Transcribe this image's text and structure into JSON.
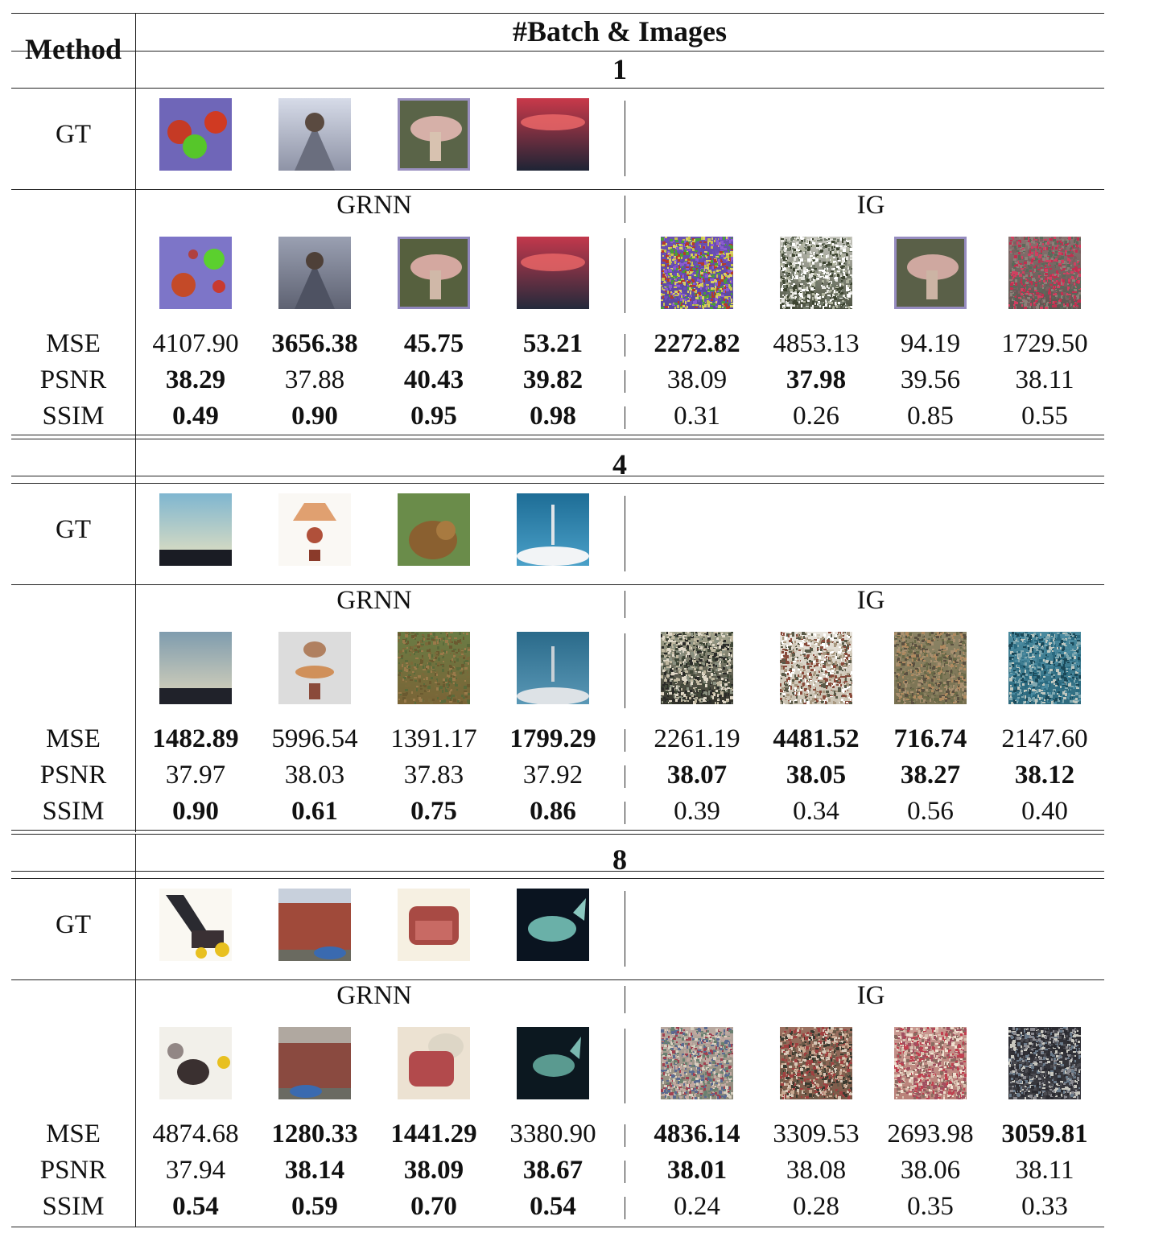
{
  "header": {
    "method_label": "Method",
    "group_label": "#Batch & Images"
  },
  "blocks": [
    {
      "batch": "1",
      "gt_label": "GT",
      "left_method": "GRNN",
      "right_method": "IG",
      "gt_images": [
        "apples",
        "road-tree",
        "mushroom",
        "sunset"
      ],
      "grnn_images": [
        "apples-recon",
        "road-tree-recon",
        "mushroom-recon",
        "sunset-recon"
      ],
      "ig_images": [
        "noise-colorful",
        "noise-grey",
        "mushroom-recon-ig",
        "noise-red"
      ],
      "metrics": [
        {
          "name": "MSE",
          "values": [
            "4107.90",
            "3656.38",
            "45.75",
            "53.21",
            "2272.82",
            "4853.13",
            "94.19",
            "1729.50"
          ],
          "bold": [
            false,
            true,
            true,
            true,
            true,
            false,
            false,
            false
          ]
        },
        {
          "name": "PSNR",
          "values": [
            "38.29",
            "37.88",
            "40.43",
            "39.82",
            "38.09",
            "37.98",
            "39.56",
            "38.11"
          ],
          "bold": [
            true,
            false,
            true,
            true,
            false,
            true,
            false,
            false
          ]
        },
        {
          "name": "SSIM",
          "values": [
            "0.49",
            "0.90",
            "0.95",
            "0.98",
            "0.31",
            "0.26",
            "0.85",
            "0.55"
          ],
          "bold": [
            true,
            true,
            true,
            true,
            false,
            false,
            false,
            false
          ]
        }
      ]
    },
    {
      "batch": "4",
      "gt_label": "GT",
      "left_method": "GRNN",
      "right_method": "IG",
      "gt_images": [
        "sky-horizon",
        "lamp",
        "lion",
        "rocket"
      ],
      "grnn_images": [
        "sky-horizon-recon",
        "lamp-recon",
        "lion-recon",
        "rocket-recon"
      ],
      "ig_images": [
        "noise-dark",
        "noise-light",
        "noise-olive",
        "noise-teal"
      ],
      "metrics": [
        {
          "name": "MSE",
          "values": [
            "1482.89",
            "5996.54",
            "1391.17",
            "1799.29",
            "2261.19",
            "4481.52",
            "716.74",
            "2147.60"
          ],
          "bold": [
            true,
            false,
            false,
            true,
            false,
            true,
            true,
            false
          ]
        },
        {
          "name": "PSNR",
          "values": [
            "37.97",
            "38.03",
            "37.83",
            "37.92",
            "38.07",
            "38.05",
            "38.27",
            "38.12"
          ],
          "bold": [
            false,
            false,
            false,
            false,
            true,
            true,
            true,
            true
          ]
        },
        {
          "name": "SSIM",
          "values": [
            "0.90",
            "0.61",
            "0.75",
            "0.86",
            "0.39",
            "0.34",
            "0.56",
            "0.40"
          ],
          "bold": [
            true,
            true,
            true,
            true,
            false,
            false,
            false,
            false
          ]
        }
      ]
    },
    {
      "batch": "8",
      "gt_label": "GT",
      "left_method": "GRNN",
      "right_method": "IG",
      "gt_images": [
        "lawnmower",
        "house",
        "armchair",
        "turtle"
      ],
      "grnn_images": [
        "lawnmower-recon",
        "house-recon",
        "armchair-recon",
        "turtle-recon"
      ],
      "ig_images": [
        "noise-mixed",
        "noise-red-brown",
        "noise-pink",
        "noise-dark-center"
      ],
      "metrics": [
        {
          "name": "MSE",
          "values": [
            "4874.68",
            "1280.33",
            "1441.29",
            "3380.90",
            "4836.14",
            "3309.53",
            "2693.98",
            "3059.81"
          ],
          "bold": [
            false,
            true,
            true,
            false,
            true,
            false,
            false,
            true
          ]
        },
        {
          "name": "PSNR",
          "values": [
            "37.94",
            "38.14",
            "38.09",
            "38.67",
            "38.01",
            "38.08",
            "38.06",
            "38.11"
          ],
          "bold": [
            false,
            true,
            true,
            true,
            true,
            false,
            false,
            false
          ]
        },
        {
          "name": "SSIM",
          "values": [
            "0.54",
            "0.59",
            "0.70",
            "0.54",
            "0.24",
            "0.28",
            "0.35",
            "0.33"
          ],
          "bold": [
            true,
            true,
            true,
            true,
            false,
            false,
            false,
            false
          ]
        }
      ]
    }
  ]
}
